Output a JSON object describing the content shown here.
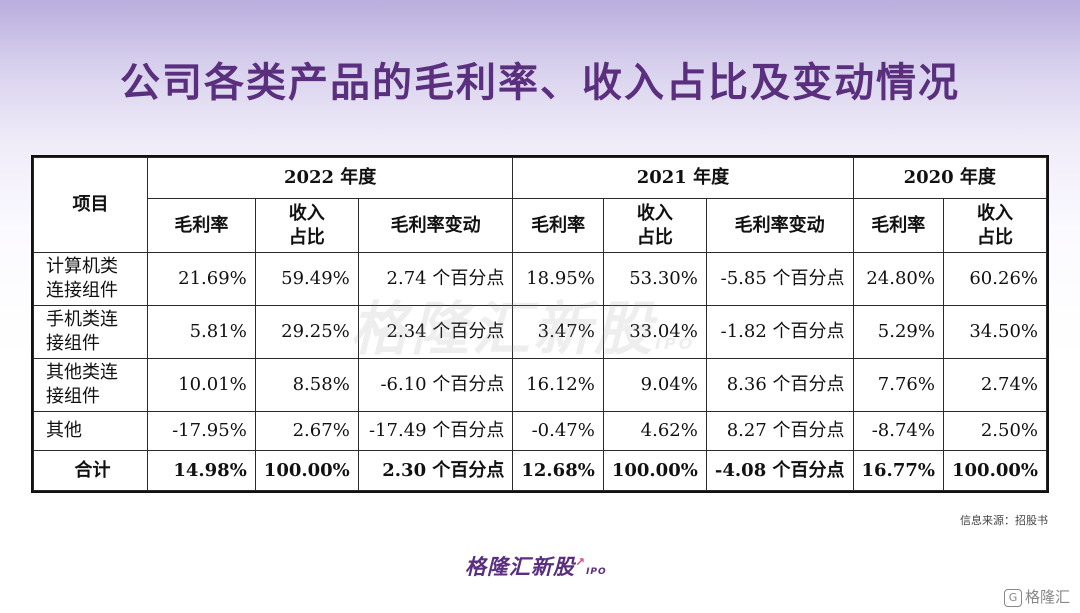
{
  "title": "公司各类产品的毛利率、收入占比及变动情况",
  "watermark": "格隆汇新股",
  "watermark_suffix": "IPO",
  "table": {
    "item_header": "项目",
    "years": [
      "2022 年度",
      "2021 年度",
      "2020 年度"
    ],
    "sub": {
      "margin": "毛利率",
      "share_l1": "收入",
      "share_l2": "占比",
      "change": "毛利率变动"
    },
    "rows": [
      {
        "item_l1": "计算机类",
        "item_l2": "连接组件",
        "m22": "21.69%",
        "s22": "59.49%",
        "c22": "2.74 个百分点",
        "m21": "18.95%",
        "s21": "53.30%",
        "c21": "-5.85 个百分点",
        "m20": "24.80%",
        "s20": "60.26%"
      },
      {
        "item_l1": "手机类连",
        "item_l2": "接组件",
        "m22": "5.81%",
        "s22": "29.25%",
        "c22": "2.34 个百分点",
        "m21": "3.47%",
        "s21": "33.04%",
        "c21": "-1.82 个百分点",
        "m20": "5.29%",
        "s20": "34.50%"
      },
      {
        "item_l1": "其他类连",
        "item_l2": "接组件",
        "m22": "10.01%",
        "s22": "8.58%",
        "c22": "-6.10 个百分点",
        "m21": "16.12%",
        "s21": "9.04%",
        "c21": "8.36 个百分点",
        "m20": "7.76%",
        "s20": "2.74%"
      },
      {
        "item_l1": "其他",
        "item_l2": "",
        "m22": "-17.95%",
        "s22": "2.67%",
        "c22": "-17.49 个百分点",
        "m21": "-0.47%",
        "s21": "4.62%",
        "c21": "8.27 个百分点",
        "m20": "-8.74%",
        "s20": "2.50%"
      }
    ],
    "total": {
      "item_l1": "合计",
      "m22": "14.98%",
      "s22": "100.00%",
      "c22": "2.30 个百分点",
      "m21": "12.68%",
      "s21": "100.00%",
      "c21": "-4.08 个百分点",
      "m20": "16.77%",
      "s20": "100.00%"
    }
  },
  "source": "信息来源：招股书",
  "brand": "格隆汇新股",
  "brand_suffix": "IPO",
  "corner_label": "格隆汇",
  "corner_icon": "G"
}
